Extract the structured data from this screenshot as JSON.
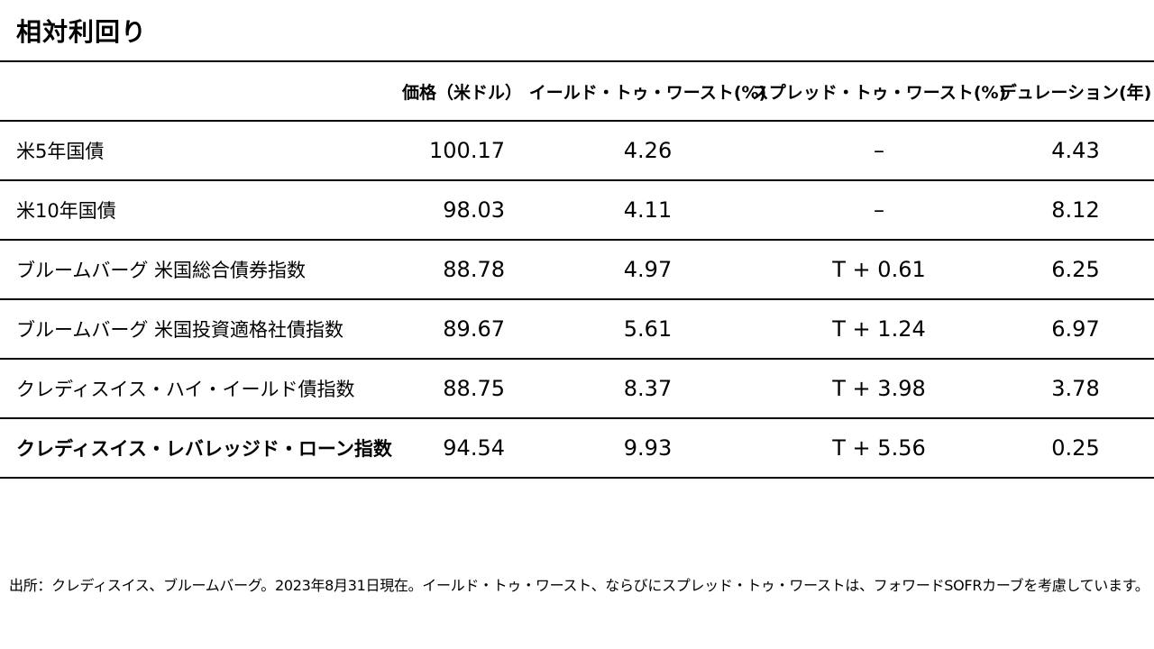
{
  "title": "相対利回り",
  "table": {
    "headers": [
      "",
      "価格（米ドル）",
      "イールド・トゥ・ワースト(%)",
      "スプレッド・トゥ・ワースト(%)",
      "デュレーション(年)"
    ],
    "rows": [
      {
        "name": "米5年国債",
        "price": "100.17",
        "ytw": "4.26",
        "stw": "–",
        "duration": "4.43"
      },
      {
        "name": "米10年国債",
        "price": "98.03",
        "ytw": "4.11",
        "stw": "–",
        "duration": "8.12"
      },
      {
        "name": "ブルームバーグ 米国総合債券指数",
        "price": "88.78",
        "ytw": "4.97",
        "stw": "T + 0.61",
        "duration": "6.25"
      },
      {
        "name": "ブルームバーグ 米国投資適格社債指数",
        "price": "89.67",
        "ytw": "5.61",
        "stw": "T + 1.24",
        "duration": "6.97"
      },
      {
        "name": "クレディスイス・ハイ・イールド債指数",
        "price": "88.75",
        "ytw": "8.37",
        "stw": "T + 3.98",
        "duration": "3.78"
      },
      {
        "name": "クレディスイス・レバレッジド・ローン指数",
        "price": "94.54",
        "ytw": "9.93",
        "stw": "T + 5.56",
        "duration": "0.25"
      }
    ]
  },
  "footnote": "出所：クレディスイス、ブルームバーグ。2023年8月31日現在。イールド・トゥ・ワースト、ならびにスプレッド・トゥ・ワーストは、フォワードSOFRカーブを考慮しています。"
}
